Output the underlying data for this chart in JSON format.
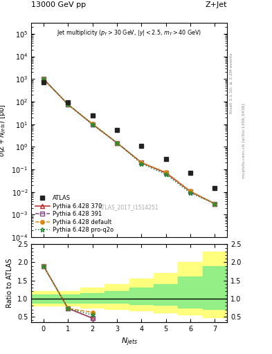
{
  "title_top": "13000 GeV pp",
  "title_right": "Z+Jet",
  "annotation": "Jet multiplicity ($p_T > 30$ GeV, $|y| < 2.5$, $m_T > 40$ GeV)",
  "atlas_label": "ATLAS_2017_I1514251",
  "rivet_label": "Rivet 3.1.10, ≥ 3.2M events",
  "mcplots_label": "mcplots.cern.ch [arXiv:1306.3436]",
  "x_data": [
    0,
    1,
    2,
    3,
    4,
    5,
    6,
    7
  ],
  "atlas_y": [
    700,
    90,
    25,
    5.5,
    1.1,
    0.28,
    0.07,
    0.015
  ],
  "py370_y": [
    1000,
    75,
    10.0,
    1.5,
    0.2,
    0.07,
    0.0105,
    0.003
  ],
  "py391_y": [
    1000,
    75,
    10.0,
    1.5,
    0.2,
    0.07,
    0.0105,
    0.003
  ],
  "pydef_y": [
    1000,
    75,
    10.5,
    1.5,
    0.2,
    0.075,
    0.011,
    0.003
  ],
  "pyproq2o_y": [
    1000,
    75,
    9.5,
    1.5,
    0.18,
    0.06,
    0.009,
    0.003
  ],
  "py370_yerr": [
    0,
    0,
    0,
    0,
    0,
    0.005,
    0.001,
    0.0004
  ],
  "py391_yerr": [
    0,
    0,
    0,
    0,
    0,
    0.005,
    0.001,
    0.0004
  ],
  "pydef_yerr": [
    0,
    0,
    0,
    0,
    0,
    0.005,
    0.001,
    0.0004
  ],
  "pyproq2o_yerr": [
    0,
    0,
    0,
    0,
    0,
    0.005,
    0.001,
    0.0004
  ],
  "ratio_py370": [
    1.9,
    0.73,
    0.46,
    null,
    null,
    null,
    null,
    null
  ],
  "ratio_py391": [
    1.9,
    0.73,
    0.46,
    null,
    null,
    null,
    null,
    null
  ],
  "ratio_pydef": [
    1.9,
    0.73,
    0.62,
    null,
    null,
    null,
    null,
    null
  ],
  "ratio_pyproq2o": [
    1.9,
    0.73,
    0.55,
    null,
    null,
    null,
    null,
    null
  ],
  "band_x": [
    -0.5,
    0.5,
    1.5,
    2.5,
    3.5,
    4.5,
    5.5,
    6.5,
    7.5
  ],
  "band_green_lo": [
    0.88,
    0.88,
    0.88,
    0.88,
    0.85,
    0.82,
    0.75,
    0.72,
    0.72
  ],
  "band_green_hi": [
    1.12,
    1.12,
    1.15,
    1.2,
    1.3,
    1.4,
    1.6,
    1.9,
    1.9
  ],
  "band_yellow_lo": [
    0.8,
    0.8,
    0.75,
    0.72,
    0.68,
    0.62,
    0.55,
    0.48,
    0.48
  ],
  "band_yellow_hi": [
    1.2,
    1.2,
    1.3,
    1.4,
    1.55,
    1.7,
    2.0,
    2.3,
    2.3
  ],
  "colors": {
    "atlas": "#222222",
    "py370": "#bb2222",
    "py391": "#884488",
    "pydef": "#dd8811",
    "pyproq2o": "#228833"
  },
  "ylabel_main": "$\\sigma(Z + N_{jets})$ [pb]",
  "ylabel_ratio": "Ratio to ATLAS",
  "xlabel": "$N_{jets}$",
  "ylim_main": [
    0.0001,
    300000.0
  ],
  "ylim_ratio": [
    0.35,
    2.5
  ],
  "xlim": [
    -0.5,
    7.5
  ]
}
